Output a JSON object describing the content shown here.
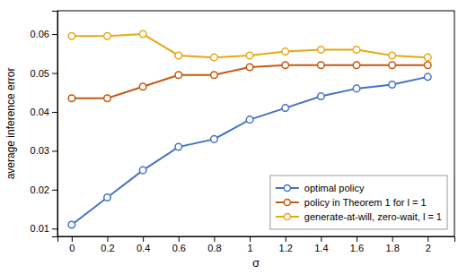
{
  "chart_data": {
    "type": "line",
    "x_label": "σ",
    "y_label": "average inference error",
    "x": [
      0,
      0.2,
      0.4,
      0.6,
      0.8,
      1,
      1.2,
      1.4,
      1.6,
      1.8,
      2
    ],
    "series": [
      {
        "name": "optimal policy",
        "color": "#4472C4",
        "marker": "circle",
        "values": [
          0.011,
          0.018,
          0.025,
          0.031,
          0.033,
          0.038,
          0.041,
          0.044,
          0.046,
          0.047,
          0.049
        ]
      },
      {
        "name": "policy in Theorem 1 for l = 1",
        "color": "#C55A11",
        "marker": "circle",
        "values": [
          0.0435,
          0.0435,
          0.0465,
          0.0495,
          0.0495,
          0.0515,
          0.052,
          0.052,
          0.052,
          0.052,
          0.052
        ]
      },
      {
        "name": "generate-at-will, zero-wait, l = 1",
        "color": "#E6A817",
        "marker": "circle",
        "values": [
          0.0595,
          0.0595,
          0.06,
          0.0545,
          0.054,
          0.0545,
          0.0555,
          0.056,
          0.056,
          0.0545,
          0.054
        ]
      }
    ],
    "xlim": [
      -0.08,
      2.15
    ],
    "ylim": [
      0.008,
      0.066
    ],
    "xticks": [
      0,
      0.2,
      0.4,
      0.6,
      0.8,
      1,
      1.2,
      1.4,
      1.6,
      1.8,
      2
    ],
    "yticks": [
      0.01,
      0.02,
      0.03,
      0.04,
      0.05,
      0.06
    ],
    "grid": false,
    "legend": "lower right"
  }
}
